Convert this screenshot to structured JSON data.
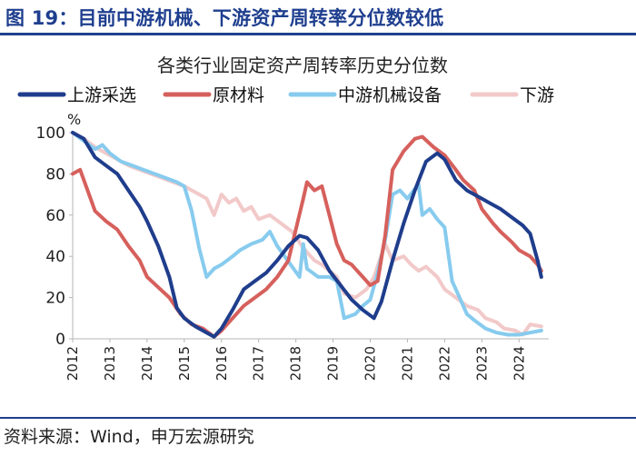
{
  "header": {
    "title": "图 19：目前中游机械、下游资产周转率分位数较低"
  },
  "footer": {
    "source": "资料来源：Wind，申万宏源研究"
  },
  "chart_data": {
    "type": "line",
    "title": "各类行业固定资产周转率历史分位数",
    "ylabel": "%",
    "xlabel": "",
    "ylim": [
      0,
      100
    ],
    "yticks": [
      0,
      20,
      40,
      60,
      80,
      100
    ],
    "xlim": [
      2012,
      2024.8
    ],
    "xticks": [
      "2012",
      "2013",
      "2014",
      "2015",
      "2016",
      "2017",
      "2018",
      "2019",
      "2020",
      "2021",
      "2022",
      "2023",
      "2024"
    ],
    "legend_position": "top",
    "colors": {
      "上游采选": "#1f3d8c",
      "原材料": "#d6605c",
      "中游机械设备": "#87cbee",
      "下游": "#f2c9c9"
    },
    "series": [
      {
        "name": "上游采选",
        "points": [
          [
            2012.0,
            100
          ],
          [
            2012.3,
            97
          ],
          [
            2012.6,
            88
          ],
          [
            2012.9,
            84
          ],
          [
            2013.2,
            80
          ],
          [
            2013.5,
            72
          ],
          [
            2013.8,
            64
          ],
          [
            2014.0,
            57
          ],
          [
            2014.3,
            45
          ],
          [
            2014.6,
            30
          ],
          [
            2014.8,
            15
          ],
          [
            2015.0,
            10
          ],
          [
            2015.3,
            6
          ],
          [
            2015.6,
            3
          ],
          [
            2015.8,
            1
          ],
          [
            2016.0,
            5
          ],
          [
            2016.3,
            14
          ],
          [
            2016.6,
            24
          ],
          [
            2016.9,
            28
          ],
          [
            2017.2,
            32
          ],
          [
            2017.5,
            38
          ],
          [
            2017.8,
            45
          ],
          [
            2018.1,
            50
          ],
          [
            2018.3,
            49
          ],
          [
            2018.6,
            43
          ],
          [
            2018.9,
            33
          ],
          [
            2019.2,
            26
          ],
          [
            2019.5,
            19
          ],
          [
            2019.8,
            14
          ],
          [
            2020.1,
            10
          ],
          [
            2020.3,
            18
          ],
          [
            2020.6,
            38
          ],
          [
            2020.9,
            56
          ],
          [
            2021.2,
            72
          ],
          [
            2021.5,
            86
          ],
          [
            2021.8,
            90
          ],
          [
            2022.0,
            87
          ],
          [
            2022.3,
            77
          ],
          [
            2022.6,
            72
          ],
          [
            2022.9,
            69
          ],
          [
            2023.2,
            66
          ],
          [
            2023.5,
            63
          ],
          [
            2023.8,
            59
          ],
          [
            2024.1,
            55
          ],
          [
            2024.3,
            51
          ],
          [
            2024.5,
            38
          ],
          [
            2024.6,
            30
          ]
        ]
      },
      {
        "name": "原材料",
        "points": [
          [
            2012.0,
            80
          ],
          [
            2012.2,
            82
          ],
          [
            2012.4,
            72
          ],
          [
            2012.6,
            62
          ],
          [
            2012.9,
            57
          ],
          [
            2013.2,
            53
          ],
          [
            2013.5,
            45
          ],
          [
            2013.8,
            38
          ],
          [
            2014.0,
            30
          ],
          [
            2014.3,
            25
          ],
          [
            2014.6,
            20
          ],
          [
            2014.9,
            12
          ],
          [
            2015.2,
            7
          ],
          [
            2015.5,
            5
          ],
          [
            2015.8,
            1
          ],
          [
            2016.0,
            4
          ],
          [
            2016.3,
            10
          ],
          [
            2016.6,
            16
          ],
          [
            2016.9,
            20
          ],
          [
            2017.2,
            24
          ],
          [
            2017.5,
            30
          ],
          [
            2017.8,
            38
          ],
          [
            2018.0,
            53
          ],
          [
            2018.2,
            68
          ],
          [
            2018.3,
            76
          ],
          [
            2018.5,
            72
          ],
          [
            2018.7,
            74
          ],
          [
            2018.9,
            60
          ],
          [
            2019.1,
            46
          ],
          [
            2019.3,
            38
          ],
          [
            2019.5,
            36
          ],
          [
            2019.8,
            30
          ],
          [
            2020.0,
            26
          ],
          [
            2020.2,
            28
          ],
          [
            2020.4,
            50
          ],
          [
            2020.6,
            82
          ],
          [
            2020.9,
            91
          ],
          [
            2021.2,
            97
          ],
          [
            2021.4,
            98
          ],
          [
            2021.7,
            93
          ],
          [
            2022.0,
            89
          ],
          [
            2022.3,
            82
          ],
          [
            2022.5,
            77
          ],
          [
            2022.8,
            72
          ],
          [
            2023.0,
            63
          ],
          [
            2023.3,
            56
          ],
          [
            2023.5,
            52
          ],
          [
            2023.8,
            47
          ],
          [
            2024.0,
            43
          ],
          [
            2024.3,
            40
          ],
          [
            2024.5,
            36
          ],
          [
            2024.6,
            33
          ]
        ]
      },
      {
        "name": "中游机械设备",
        "points": [
          [
            2012.0,
            100
          ],
          [
            2012.3,
            96
          ],
          [
            2012.6,
            92
          ],
          [
            2012.8,
            94
          ],
          [
            2013.0,
            90
          ],
          [
            2013.3,
            86
          ],
          [
            2013.6,
            84
          ],
          [
            2013.9,
            82
          ],
          [
            2014.2,
            80
          ],
          [
            2014.5,
            78
          ],
          [
            2014.8,
            76
          ],
          [
            2015.0,
            74
          ],
          [
            2015.2,
            62
          ],
          [
            2015.4,
            44
          ],
          [
            2015.6,
            30
          ],
          [
            2015.8,
            34
          ],
          [
            2016.0,
            36
          ],
          [
            2016.3,
            40
          ],
          [
            2016.5,
            43
          ],
          [
            2016.8,
            46
          ],
          [
            2017.1,
            48
          ],
          [
            2017.3,
            52
          ],
          [
            2017.5,
            45
          ],
          [
            2017.7,
            40
          ],
          [
            2017.9,
            35
          ],
          [
            2018.1,
            30
          ],
          [
            2018.2,
            46
          ],
          [
            2018.3,
            34
          ],
          [
            2018.6,
            30
          ],
          [
            2018.9,
            30
          ],
          [
            2019.1,
            28
          ],
          [
            2019.3,
            10
          ],
          [
            2019.6,
            12
          ],
          [
            2019.8,
            16
          ],
          [
            2020.0,
            19
          ],
          [
            2020.2,
            32
          ],
          [
            2020.4,
            48
          ],
          [
            2020.6,
            70
          ],
          [
            2020.8,
            72
          ],
          [
            2021.0,
            68
          ],
          [
            2021.3,
            75
          ],
          [
            2021.4,
            60
          ],
          [
            2021.6,
            63
          ],
          [
            2021.8,
            58
          ],
          [
            2022.0,
            54
          ],
          [
            2022.2,
            28
          ],
          [
            2022.4,
            20
          ],
          [
            2022.6,
            12
          ],
          [
            2022.8,
            9
          ],
          [
            2023.1,
            5
          ],
          [
            2023.4,
            3
          ],
          [
            2023.7,
            2
          ],
          [
            2024.0,
            2
          ],
          [
            2024.3,
            3
          ],
          [
            2024.6,
            4
          ]
        ]
      },
      {
        "name": "下游",
        "points": [
          [
            2012.0,
            100
          ],
          [
            2012.3,
            97
          ],
          [
            2012.6,
            93
          ],
          [
            2012.9,
            90
          ],
          [
            2013.2,
            87
          ],
          [
            2013.5,
            84
          ],
          [
            2013.8,
            82
          ],
          [
            2014.1,
            80
          ],
          [
            2014.4,
            78
          ],
          [
            2014.7,
            76
          ],
          [
            2015.0,
            74
          ],
          [
            2015.3,
            71
          ],
          [
            2015.6,
            68
          ],
          [
            2015.8,
            60
          ],
          [
            2016.0,
            70
          ],
          [
            2016.2,
            66
          ],
          [
            2016.4,
            68
          ],
          [
            2016.6,
            62
          ],
          [
            2016.8,
            64
          ],
          [
            2017.0,
            58
          ],
          [
            2017.3,
            60
          ],
          [
            2017.6,
            56
          ],
          [
            2017.9,
            52
          ],
          [
            2018.2,
            44
          ],
          [
            2018.5,
            38
          ],
          [
            2018.7,
            36
          ],
          [
            2018.9,
            33
          ],
          [
            2019.1,
            30
          ],
          [
            2019.3,
            22
          ],
          [
            2019.6,
            20
          ],
          [
            2019.9,
            24
          ],
          [
            2020.1,
            30
          ],
          [
            2020.4,
            46
          ],
          [
            2020.6,
            38
          ],
          [
            2020.9,
            40
          ],
          [
            2021.1,
            36
          ],
          [
            2021.3,
            33
          ],
          [
            2021.5,
            35
          ],
          [
            2021.8,
            30
          ],
          [
            2022.0,
            24
          ],
          [
            2022.3,
            20
          ],
          [
            2022.6,
            16
          ],
          [
            2022.9,
            14
          ],
          [
            2023.1,
            10
          ],
          [
            2023.4,
            8
          ],
          [
            2023.6,
            5
          ],
          [
            2023.9,
            4
          ],
          [
            2024.1,
            2
          ],
          [
            2024.3,
            7
          ],
          [
            2024.6,
            6
          ]
        ]
      }
    ]
  }
}
